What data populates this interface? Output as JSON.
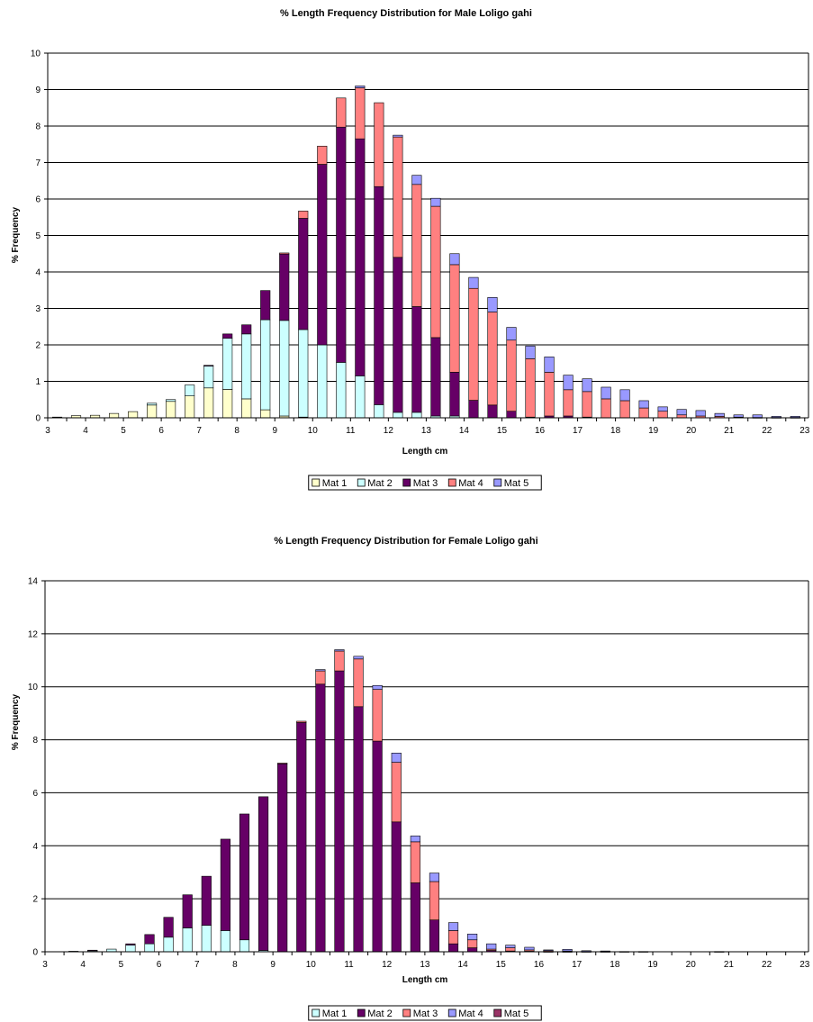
{
  "colors": {
    "grid": "#000000",
    "border": "#000000"
  },
  "chart_data": [
    {
      "type": "bar",
      "stacked": true,
      "title": "% Length Frequency Distribution for Male Loligo gahi",
      "xlabel": "Length cm",
      "ylabel": "% Frequency",
      "ylim": [
        0,
        10
      ],
      "yticks": [
        "0",
        "1",
        "2",
        "3",
        "4",
        "5",
        "6",
        "7",
        "8",
        "9",
        "10"
      ],
      "xtick_labels": [
        "3",
        "4",
        "5",
        "6",
        "7",
        "8",
        "9",
        "10",
        "11",
        "12",
        "13",
        "14",
        "15",
        "16",
        "17",
        "18",
        "19",
        "20",
        "21",
        "22",
        "23"
      ],
      "grid": true,
      "legend_position": "bottom",
      "x": [
        3.5,
        4,
        4.5,
        5,
        5.5,
        6,
        6.5,
        7,
        7.5,
        8,
        8.5,
        9,
        9.5,
        10,
        10.5,
        11,
        11.5,
        12,
        12.5,
        13,
        13.5,
        14,
        14.5,
        15,
        15.5,
        16,
        16.5,
        17,
        17.5,
        18,
        18.5,
        19,
        19.5,
        20,
        20.5,
        21,
        21.5,
        22,
        22.5,
        23
      ],
      "series": [
        {
          "name": "Mat 1",
          "color": "#FFFFCC",
          "values": [
            0.02,
            0.06,
            0.07,
            0.12,
            0.17,
            0.35,
            0.45,
            0.6,
            0.82,
            0.78,
            0.52,
            0.22,
            0.05,
            0.02,
            0,
            0,
            0,
            0,
            0,
            0,
            0,
            0,
            0,
            0,
            0,
            0,
            0,
            0,
            0,
            0,
            0,
            0,
            0,
            0,
            0,
            0,
            0,
            0,
            0,
            0
          ]
        },
        {
          "name": "Mat 2",
          "color": "#CCFFFF",
          "values": [
            0,
            0,
            0,
            0,
            0,
            0.05,
            0.05,
            0.3,
            0.6,
            1.4,
            1.78,
            2.47,
            2.62,
            2.4,
            2.0,
            1.52,
            1.15,
            0.36,
            0.15,
            0.15,
            0.05,
            0.05,
            0,
            0,
            0,
            0,
            0,
            0,
            0,
            0,
            0,
            0,
            0,
            0,
            0,
            0,
            0,
            0,
            0,
            0
          ]
        },
        {
          "name": "Mat 3",
          "color": "#660066",
          "values": [
            0,
            0,
            0,
            0,
            0,
            0,
            0,
            0,
            0.02,
            0.12,
            0.25,
            0.8,
            1.82,
            3.05,
            4.95,
            6.45,
            6.5,
            5.98,
            4.25,
            2.9,
            2.15,
            1.2,
            0.48,
            0.35,
            0.18,
            0.02,
            0.05,
            0.05,
            0.02,
            0,
            0,
            0,
            0,
            0,
            0,
            0,
            0,
            0,
            0,
            0
          ]
        },
        {
          "name": "Mat 4",
          "color": "#FF8080",
          "values": [
            0,
            0,
            0,
            0,
            0,
            0,
            0,
            0,
            0,
            0,
            0,
            0,
            0.03,
            0.2,
            0.5,
            0.8,
            1.4,
            2.3,
            3.3,
            3.35,
            3.6,
            2.95,
            3.07,
            2.55,
            1.95,
            1.6,
            1.2,
            0.72,
            0.7,
            0.52,
            0.47,
            0.27,
            0.18,
            0.08,
            0.05,
            0.04,
            0.02,
            0.01,
            0.01,
            0.01
          ]
        },
        {
          "name": "Mat 5",
          "color": "#9999FF",
          "values": [
            0,
            0,
            0,
            0,
            0,
            0,
            0,
            0,
            0,
            0,
            0,
            0,
            0,
            0,
            0,
            0,
            0.05,
            0,
            0.05,
            0.25,
            0.22,
            0.3,
            0.3,
            0.4,
            0.35,
            0.35,
            0.42,
            0.4,
            0.35,
            0.32,
            0.3,
            0.2,
            0.12,
            0.15,
            0.15,
            0.08,
            0.06,
            0.07,
            0.03,
            0.03
          ]
        }
      ]
    },
    {
      "type": "bar",
      "stacked": true,
      "title": "% Length Frequency Distribution for Female Loligo gahi",
      "xlabel": "Length cm",
      "ylabel": "% Frequency",
      "ylim": [
        0,
        14
      ],
      "yticks": [
        "0",
        "2",
        "4",
        "6",
        "8",
        "10",
        "12",
        "14"
      ],
      "xtick_labels": [
        "3",
        "4",
        "5",
        "6",
        "7",
        "8",
        "9",
        "10",
        "11",
        "12",
        "13",
        "14",
        "15",
        "16",
        "17",
        "18",
        "19",
        "20",
        "21",
        "22",
        "23"
      ],
      "grid": true,
      "legend_position": "bottom",
      "x": [
        3.5,
        4,
        4.5,
        5,
        5.5,
        6,
        6.5,
        7,
        7.5,
        8,
        8.5,
        9,
        9.5,
        10,
        10.5,
        11,
        11.5,
        12,
        12.5,
        13,
        13.5,
        14,
        14.5,
        15,
        15.5,
        16,
        16.5,
        17,
        17.5,
        18,
        18.5,
        19,
        19.5,
        20,
        20.5,
        21,
        21.5,
        22,
        22.5,
        23
      ],
      "series": [
        {
          "name": "Mat 1",
          "color": "#CCFFFF",
          "values": [
            0,
            0.02,
            0.05,
            0.1,
            0.25,
            0.3,
            0.55,
            0.9,
            1.0,
            0.8,
            0.45,
            0.05,
            0,
            0,
            0,
            0,
            0,
            0,
            0,
            0,
            0,
            0,
            0,
            0,
            0,
            0,
            0,
            0,
            0,
            0,
            0,
            0,
            0,
            0,
            0,
            0,
            0,
            0,
            0,
            0
          ]
        },
        {
          "name": "Mat 2",
          "color": "#660066",
          "values": [
            0,
            0,
            0.01,
            0,
            0.05,
            0.35,
            0.75,
            1.25,
            1.85,
            3.45,
            4.75,
            5.8,
            7.1,
            8.65,
            10.1,
            10.6,
            9.25,
            7.95,
            4.9,
            2.6,
            1.2,
            0.3,
            0.15,
            0.05,
            0.03,
            0.02,
            0.01,
            0.01,
            0,
            0,
            0,
            0,
            0,
            0,
            0,
            0,
            0,
            0,
            0,
            0
          ]
        },
        {
          "name": "Mat 3",
          "color": "#FF8080",
          "values": [
            0,
            0,
            0,
            0,
            0,
            0,
            0,
            0,
            0,
            0,
            0,
            0,
            0.02,
            0.05,
            0.5,
            0.75,
            1.8,
            1.95,
            2.25,
            1.55,
            1.45,
            0.5,
            0.3,
            0.05,
            0.12,
            0.05,
            0.03,
            0.02,
            0.01,
            0.01,
            0,
            0,
            0,
            0,
            0,
            0,
            0,
            0,
            0,
            0
          ]
        },
        {
          "name": "Mat 4",
          "color": "#9999FF",
          "values": [
            0,
            0,
            0,
            0,
            0,
            0,
            0,
            0,
            0,
            0,
            0,
            0,
            0,
            0,
            0.05,
            0.05,
            0.1,
            0.15,
            0.35,
            0.22,
            0.32,
            0.3,
            0.22,
            0.2,
            0.1,
            0.1,
            0.03,
            0.06,
            0.03,
            0.02,
            0.01,
            0.01,
            0,
            0,
            0,
            0.01,
            0,
            0,
            0,
            0
          ]
        },
        {
          "name": "Mat 5",
          "color": "#993366",
          "values": [
            0,
            0,
            0,
            0,
            0,
            0,
            0,
            0,
            0,
            0,
            0,
            0,
            0,
            0,
            0,
            0,
            0,
            0,
            0,
            0,
            0,
            0,
            0,
            0,
            0,
            0,
            0,
            0,
            0,
            0,
            0,
            0,
            0,
            0,
            0,
            0,
            0,
            0,
            0,
            0
          ]
        }
      ]
    }
  ]
}
